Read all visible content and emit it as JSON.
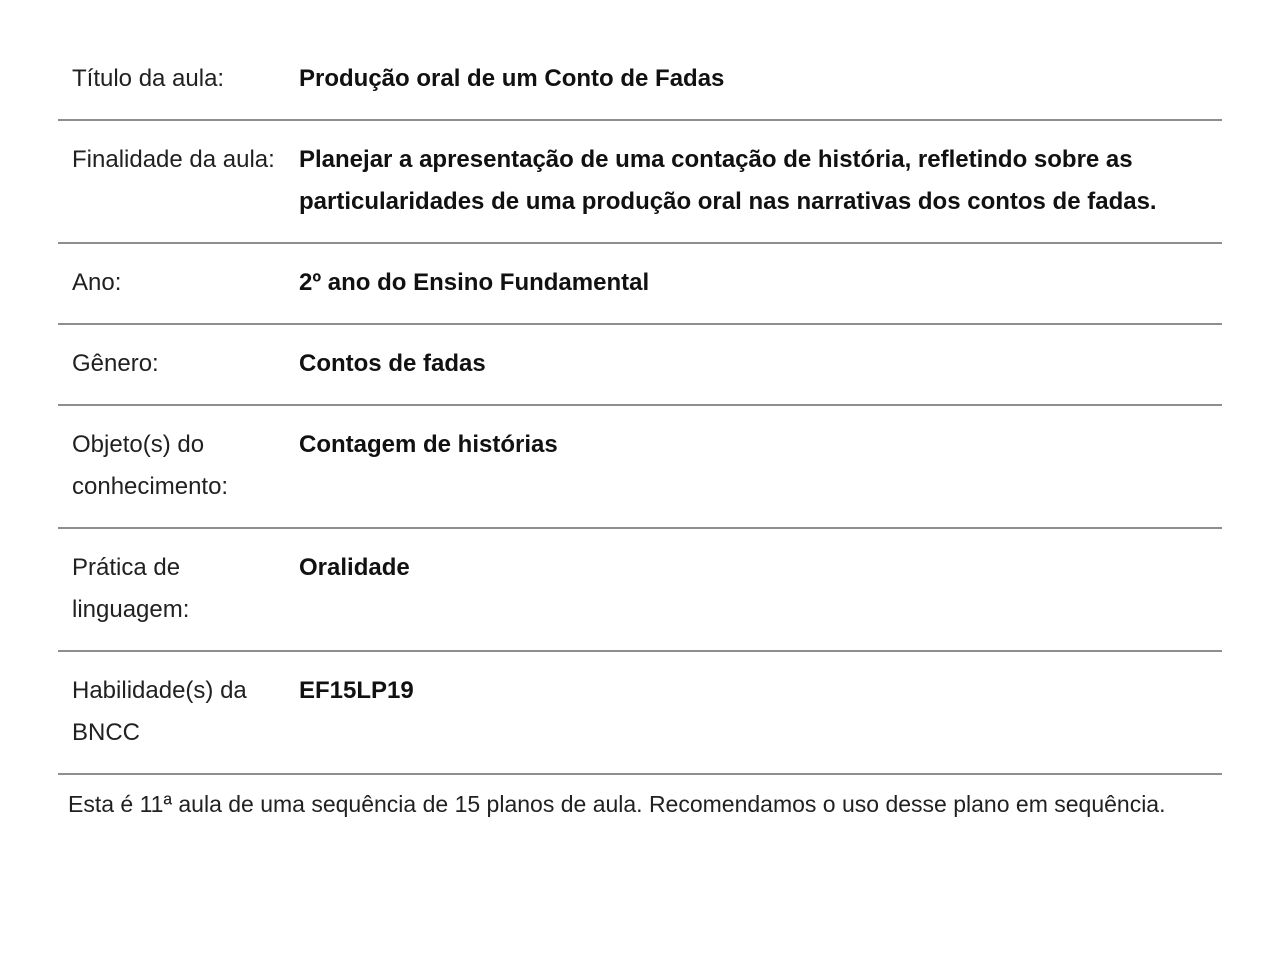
{
  "document": {
    "type": "lesson-plan-summary-table",
    "rows": [
      {
        "label": "Título da aula:",
        "value": "Produção oral de um Conto de Fadas"
      },
      {
        "label": "Finalidade da aula:",
        "value": "Planejar a apresentação de uma contação de história, refletindo sobre as particularidades de uma produção oral nas narrativas dos contos de fadas."
      },
      {
        "label": "Ano:",
        "value": "2º ano do Ensino Fundamental"
      },
      {
        "label": "Gênero:",
        "value": "Contos de fadas"
      },
      {
        "label": "Objeto(s) do conhecimento:",
        "value": "Contagem de histórias"
      },
      {
        "label": "Prática de linguagem:",
        "value": "Oralidade"
      },
      {
        "label": "Habilidade(s) da BNCC",
        "value": "EF15LP19"
      }
    ],
    "footer": "Esta é 11ª aula de uma sequência de 15 planos de aula. Recomendamos o uso desse plano em sequência."
  },
  "colors": {
    "background": "#ffffff",
    "divider": "#8e8e8e",
    "label_text": "#212121",
    "value_text": "#111111"
  }
}
